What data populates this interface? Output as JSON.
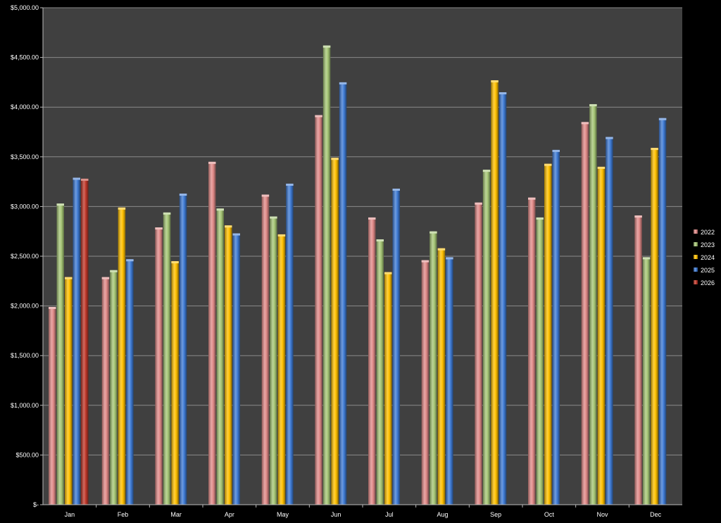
{
  "chart_data": {
    "type": "bar",
    "title": "",
    "xlabel": "",
    "ylabel": "",
    "ylim": [
      0,
      5000
    ],
    "y_ticks": [
      "$-",
      "$500.00",
      "$1,000.00",
      "$1,500.00",
      "$2,000.00",
      "$2,500.00",
      "$3,000.00",
      "$3,500.00",
      "$4,000.00",
      "$4,500.00",
      "$5,000.00"
    ],
    "y_tick_values": [
      0,
      500,
      1000,
      1500,
      2000,
      2500,
      3000,
      3500,
      4000,
      4500,
      5000
    ],
    "grid": true,
    "legend_position": "right",
    "categories": [
      "Jan",
      "Feb",
      "Mar",
      "Apr",
      "May",
      "Jun",
      "Jul",
      "Aug",
      "Sep",
      "Oct",
      "Nov",
      "Dec"
    ],
    "series": [
      {
        "name": "2022",
        "color": "#e08a88",
        "values": [
          1990,
          2290,
          2790,
          3450,
          3120,
          3920,
          2890,
          2460,
          3040,
          3090,
          3850,
          2910
        ]
      },
      {
        "name": "2023",
        "color": "#a6c676",
        "values": [
          3030,
          2360,
          2940,
          2980,
          2900,
          4620,
          2670,
          2750,
          3370,
          2890,
          4030,
          2490
        ]
      },
      {
        "name": "2024",
        "color": "#ffc000",
        "values": [
          2290,
          2990,
          2450,
          2810,
          2720,
          3490,
          2340,
          2580,
          4270,
          3430,
          3400,
          3590
        ]
      },
      {
        "name": "2025",
        "color": "#3f7bd4",
        "values": [
          3290,
          2470,
          3130,
          2730,
          3230,
          4250,
          3180,
          2490,
          4150,
          3570,
          3700,
          3890
        ]
      },
      {
        "name": "2026",
        "color": "#c0392b",
        "values": [
          3280,
          null,
          null,
          null,
          null,
          null,
          null,
          null,
          null,
          null,
          null,
          null
        ]
      }
    ]
  }
}
